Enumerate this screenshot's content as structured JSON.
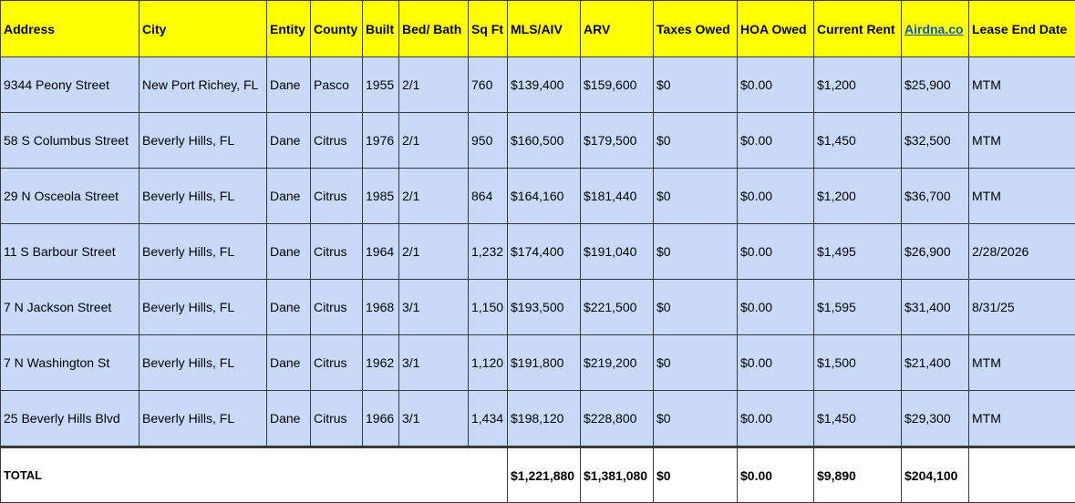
{
  "table": {
    "header": [
      "Address",
      "City",
      "Entity",
      "County",
      "Built",
      "Bed/ Bath",
      "Sq Ft",
      "MLS/AIV",
      "ARV",
      "Taxes Owed",
      "HOA Owed",
      "Current Rent",
      "Airdna.co",
      "Lease End Date"
    ],
    "rows": [
      [
        "9344 Peony Street",
        "New Port Richey, FL",
        "Dane",
        "Pasco",
        "1955",
        "2/1",
        "760",
        "$139,400",
        "$159,600",
        "$0",
        "$0.00",
        "$1,200",
        "$25,900",
        "MTM"
      ],
      [
        "58 S Columbus Street",
        "Beverly Hills, FL",
        "Dane",
        "Citrus",
        "1976",
        "2/1",
        "950",
        "$160,500",
        "$179,500",
        "$0",
        "$0.00",
        "$1,450",
        "$32,500",
        "MTM"
      ],
      [
        "29 N Osceola Street",
        "Beverly Hills, FL",
        "Dane",
        "Citrus",
        "1985",
        "2/1",
        "864",
        "$164,160",
        "$181,440",
        "$0",
        "$0.00",
        "$1,200",
        "$36,700",
        "MTM"
      ],
      [
        "11 S Barbour Street",
        "Beverly Hills, FL",
        "Dane",
        "Citrus",
        "1964",
        "2/1",
        "1,232",
        "$174,400",
        "$191,040",
        "$0",
        "$0.00",
        "$1,495",
        "$26,900",
        "2/28/2026"
      ],
      [
        "7 N Jackson Street",
        "Beverly Hills, FL",
        "Dane",
        "Citrus",
        "1968",
        "3/1",
        "1,150",
        "$193,500",
        "$221,500",
        "$0",
        "$0.00",
        "$1,595",
        "$31,400",
        "8/31/25"
      ],
      [
        "7 N Washington St",
        "Beverly Hills, FL",
        "Dane",
        "Citrus",
        "1962",
        "3/1",
        "1,120",
        "$191,800",
        "$219,200",
        "$0",
        "$0.00",
        "$1,500",
        "$21,400",
        "MTM"
      ],
      [
        "25 Beverly Hills Blvd",
        "Beverly Hills, FL",
        "Dane",
        "Citrus",
        "1966",
        "3/1",
        "1,434",
        "$198,120",
        "$228,800",
        "$0",
        "$0.00",
        "$1,450",
        "$29,300",
        "MTM"
      ]
    ],
    "total": {
      "label": "TOTAL",
      "values": [
        "$1,221,880",
        "$1,381,080",
        "$0",
        "$0.00",
        "$9,890",
        "$204,100"
      ]
    }
  }
}
